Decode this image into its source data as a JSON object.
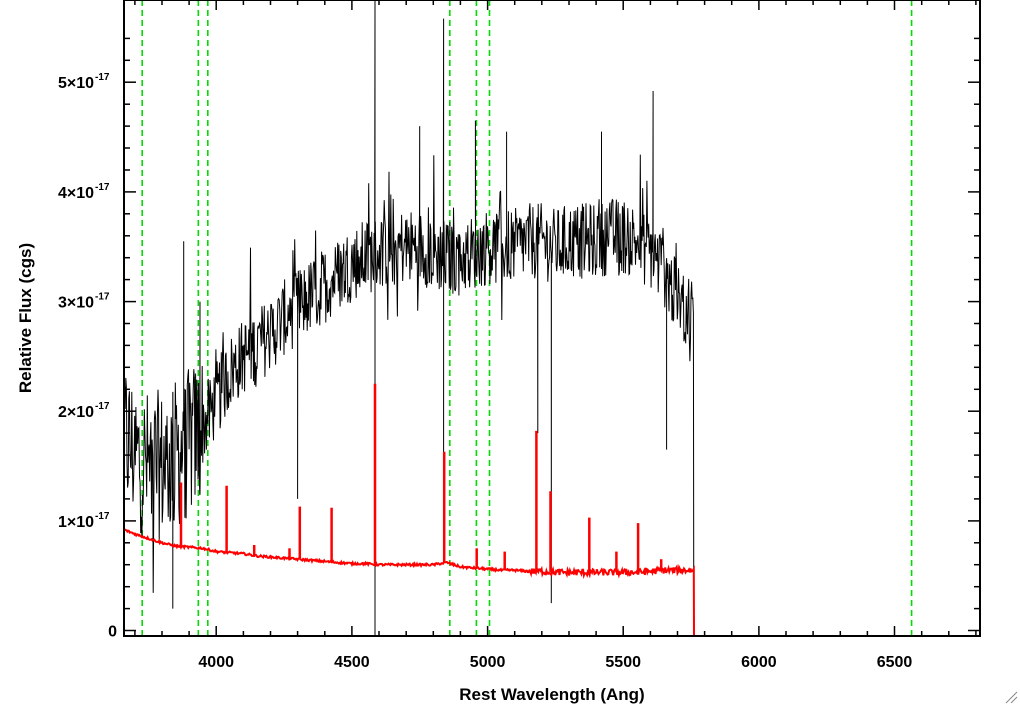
{
  "chart_data": {
    "type": "line",
    "title": "",
    "xlabel": "Rest Wavelength (Ang)",
    "ylabel": "Relative Flux (cgs)",
    "xlim": [
      3660,
      6815
    ],
    "ylim": [
      -0.05,
      5.75
    ],
    "y_scale_note": "x10^-17",
    "x_ticks": [
      {
        "value": 4000,
        "label": "4000"
      },
      {
        "value": 4500,
        "label": "4500"
      },
      {
        "value": 5000,
        "label": "5000"
      },
      {
        "value": 5500,
        "label": "5500"
      },
      {
        "value": 6000,
        "label": "6000"
      },
      {
        "value": 6500,
        "label": "6500"
      }
    ],
    "y_ticks": [
      {
        "value": 0,
        "mantissa": "0",
        "exponent": ""
      },
      {
        "value": 1,
        "mantissa": "1×10",
        "exponent": "-17"
      },
      {
        "value": 2,
        "mantissa": "2×10",
        "exponent": "-17"
      },
      {
        "value": 3,
        "mantissa": "3×10",
        "exponent": "-17"
      },
      {
        "value": 4,
        "mantissa": "4×10",
        "exponent": "-17"
      },
      {
        "value": 5,
        "mantissa": "5×10",
        "exponent": "-17"
      }
    ],
    "grid": false,
    "legend": "none",
    "vertical_markers": {
      "style": "dashed",
      "color": "#00dd00",
      "x": [
        3727,
        3934,
        3969,
        4861,
        4959,
        5007,
        6563
      ]
    },
    "series": [
      {
        "color": "#000000",
        "description": "observed spectrum",
        "x": [
          3660,
          3700,
          3750,
          3800,
          3850,
          3900,
          3950,
          4000,
          4050,
          4100,
          4150,
          4200,
          4250,
          4300,
          4350,
          4400,
          4450,
          4500,
          4550,
          4600,
          4650,
          4700,
          4750,
          4800,
          4850,
          4900,
          4950,
          5000,
          5050,
          5100,
          5150,
          5200,
          5250,
          5300,
          5350,
          5400,
          5450,
          5500,
          5550,
          5600,
          5650,
          5700,
          5760
        ],
        "y": [
          1.8,
          1.6,
          1.5,
          1.5,
          1.6,
          1.7,
          1.85,
          2.1,
          2.35,
          2.5,
          2.6,
          2.7,
          2.85,
          2.95,
          3.05,
          3.15,
          3.25,
          3.35,
          3.4,
          3.45,
          3.5,
          3.5,
          3.5,
          3.45,
          3.4,
          3.4,
          3.45,
          3.5,
          3.5,
          3.5,
          3.55,
          3.55,
          3.5,
          3.55,
          3.55,
          3.55,
          3.6,
          3.6,
          3.55,
          3.45,
          3.3,
          3.0,
          2.9
        ],
        "spikes": [
          {
            "x": 4585,
            "y": 5.75
          },
          {
            "x": 4585,
            "y": -0.05
          },
          {
            "x": 4838,
            "y": 5.58
          },
          {
            "x": 4838,
            "y": 1.6
          },
          {
            "x": 5610,
            "y": 4.92
          },
          {
            "x": 4750,
            "y": 4.6
          },
          {
            "x": 4955,
            "y": 4.65
          },
          {
            "x": 5070,
            "y": 4.55
          },
          {
            "x": 5420,
            "y": 4.55
          },
          {
            "x": 3840,
            "y": 0.2
          },
          {
            "x": 3880,
            "y": 3.55
          },
          {
            "x": 3940,
            "y": 3.0
          },
          {
            "x": 4300,
            "y": 1.2
          },
          {
            "x": 5235,
            "y": 0.25
          },
          {
            "x": 5185,
            "y": 1.8
          },
          {
            "x": 5660,
            "y": 1.65
          }
        ],
        "cutoff_x": 5760
      },
      {
        "color": "#ff0000",
        "description": "model / error spectrum",
        "x": [
          3660,
          3700,
          3750,
          3800,
          3850,
          3900,
          3950,
          4000,
          4050,
          4100,
          4150,
          4200,
          4250,
          4300,
          4350,
          4400,
          4450,
          4500,
          4550,
          4600,
          4650,
          4700,
          4750,
          4800,
          4850,
          4900,
          4950,
          5000,
          5050,
          5100,
          5150,
          5200,
          5250,
          5300,
          5350,
          5400,
          5450,
          5500,
          5550,
          5600,
          5650,
          5700,
          5760,
          5770,
          6815
        ],
        "y": [
          0.92,
          0.88,
          0.84,
          0.8,
          0.77,
          0.76,
          0.75,
          0.72,
          0.71,
          0.7,
          0.68,
          0.67,
          0.66,
          0.65,
          0.64,
          0.63,
          0.62,
          0.61,
          0.61,
          0.6,
          0.6,
          0.6,
          0.6,
          0.6,
          0.62,
          0.58,
          0.57,
          0.56,
          0.55,
          0.55,
          0.54,
          0.54,
          0.53,
          0.53,
          0.53,
          0.53,
          0.53,
          0.53,
          0.53,
          0.54,
          0.55,
          0.55,
          0.55,
          -0.05,
          -0.05
        ],
        "emission_lines": [
          {
            "x": 3870,
            "y": 1.35
          },
          {
            "x": 4038,
            "y": 1.32
          },
          {
            "x": 4140,
            "y": 0.78
          },
          {
            "x": 4270,
            "y": 0.75
          },
          {
            "x": 4308,
            "y": 1.13
          },
          {
            "x": 4425,
            "y": 1.12
          },
          {
            "x": 4585,
            "y": 2.25
          },
          {
            "x": 4840,
            "y": 1.63
          },
          {
            "x": 4960,
            "y": 0.75
          },
          {
            "x": 5063,
            "y": 0.72
          },
          {
            "x": 5180,
            "y": 1.82
          },
          {
            "x": 5232,
            "y": 1.27
          },
          {
            "x": 5375,
            "y": 1.03
          },
          {
            "x": 5475,
            "y": 0.72
          },
          {
            "x": 5555,
            "y": 0.98
          },
          {
            "x": 5640,
            "y": 0.65
          }
        ]
      }
    ]
  }
}
